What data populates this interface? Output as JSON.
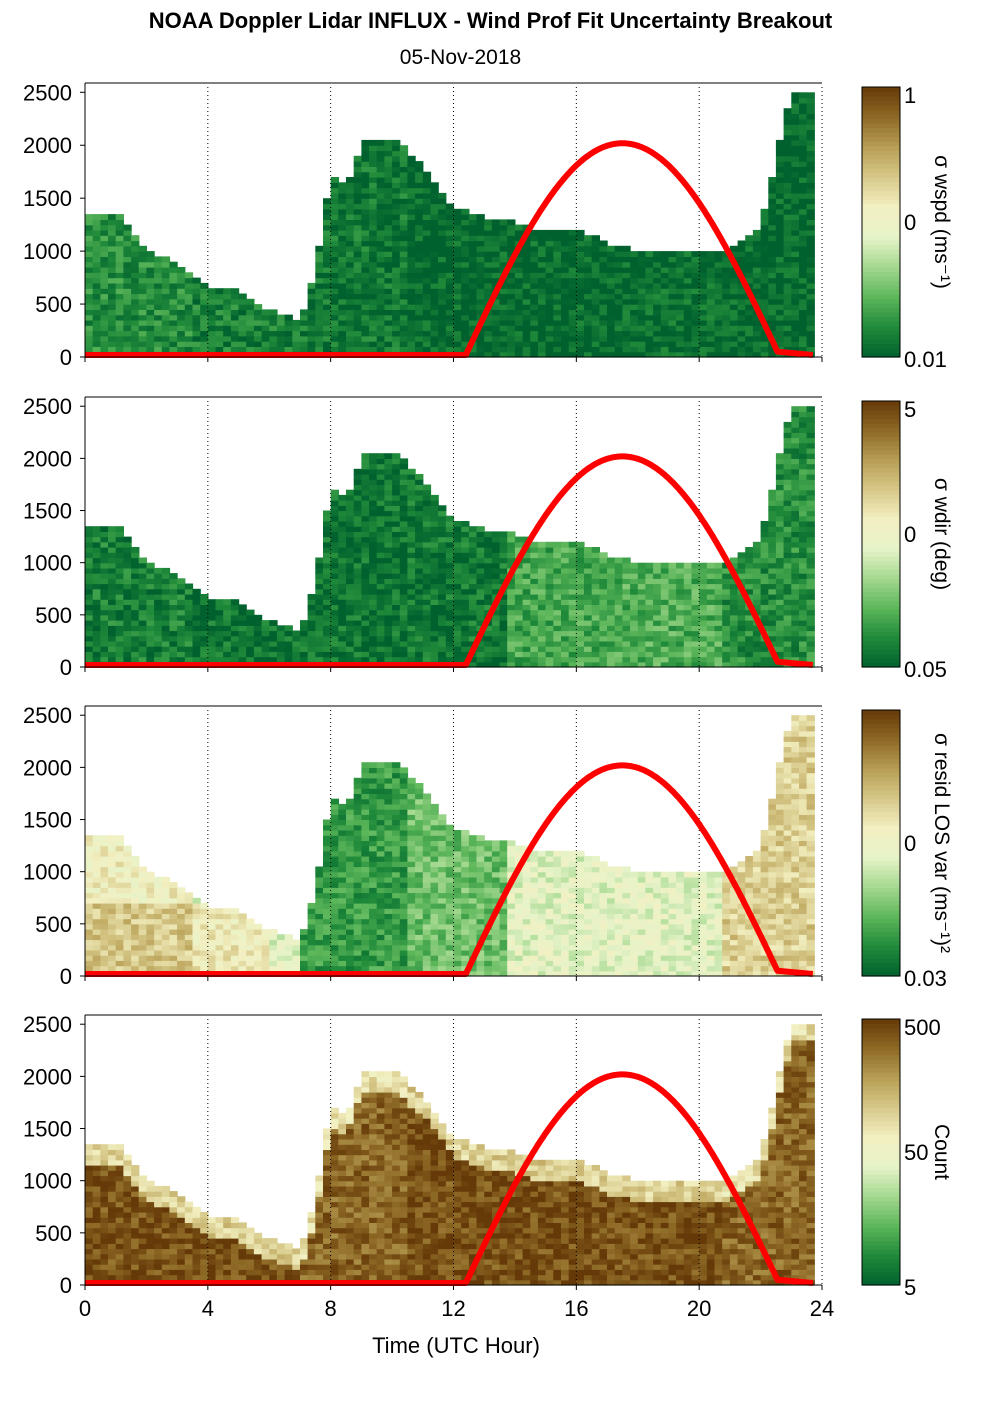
{
  "figure": {
    "title": "NOAA Doppler Lidar INFLUX - Wind Prof Fit Uncertainty Breakout",
    "subtitle": "05-Nov-2018",
    "xlabel": "Time (UTC Hour)"
  },
  "colors": {
    "colormap": [
      "#00612e",
      "#1f8a3a",
      "#5cb65a",
      "#a3d88f",
      "#e6f3c8",
      "#f3f0c2",
      "#d7c98a",
      "#b89f55",
      "#8e6a26",
      "#663a08"
    ],
    "sun_curve": "#ff0000",
    "gridline": "#000000"
  },
  "chart_data": [
    {
      "type": "heatmap",
      "panel": "wind speed uncertainty",
      "colorbar_label": "σ wspd (ms⁻¹)",
      "colorbar_ticks": [
        "1",
        "0",
        "0.01"
      ],
      "colorbar_scale": "log",
      "x": {
        "range": [
          0,
          24
        ],
        "ticks": [
          0,
          4,
          8,
          12,
          16,
          20,
          24
        ],
        "grid": "dotted"
      },
      "y": {
        "range": [
          0,
          2550
        ],
        "ticks": [
          0,
          500,
          1000,
          1500,
          2000,
          2500
        ]
      },
      "coverage_top_m": [
        [
          0,
          1300
        ],
        [
          1,
          1350
        ],
        [
          2,
          1000
        ],
        [
          3,
          850
        ],
        [
          4,
          650
        ],
        [
          5,
          600
        ],
        [
          6,
          420
        ],
        [
          7,
          330
        ],
        [
          7.5,
          800
        ],
        [
          8,
          1700
        ],
        [
          8.5,
          1600
        ],
        [
          9,
          2000
        ],
        [
          10,
          2050
        ],
        [
          11,
          1800
        ],
        [
          12,
          1400
        ],
        [
          13,
          1300
        ],
        [
          14,
          1250
        ],
        [
          15,
          1150
        ],
        [
          16,
          1200
        ],
        [
          17,
          1050
        ],
        [
          18,
          980
        ],
        [
          19,
          950
        ],
        [
          20,
          980
        ],
        [
          21,
          1000
        ],
        [
          22,
          1200
        ],
        [
          23,
          2500
        ],
        [
          24,
          2500
        ]
      ],
      "level_by_segment": [
        0.12,
        0.08,
        0.06,
        0.02,
        0.02,
        0.03,
        0.02
      ],
      "sun_elevation": {
        "x": [
          0,
          12.4,
          17.5,
          22.6,
          24
        ],
        "peak": 2000,
        "note": "solar curve"
      }
    },
    {
      "type": "heatmap",
      "panel": "wind direction uncertainty",
      "colorbar_label": "σ wdir (deg)",
      "colorbar_ticks": [
        "5",
        "0",
        "0.05"
      ],
      "colorbar_scale": "log",
      "x": {
        "range": [
          0,
          24
        ],
        "ticks": [
          0,
          4,
          8,
          12,
          16,
          20,
          24
        ],
        "grid": "dotted"
      },
      "y": {
        "range": [
          0,
          2550
        ],
        "ticks": [
          0,
          500,
          1000,
          1500,
          2000,
          2500
        ]
      },
      "coverage_top_m": [
        [
          0,
          1300
        ],
        [
          1,
          1350
        ],
        [
          2,
          1000
        ],
        [
          3,
          850
        ],
        [
          4,
          650
        ],
        [
          5,
          600
        ],
        [
          6,
          420
        ],
        [
          7,
          330
        ],
        [
          7.5,
          800
        ],
        [
          8,
          1700
        ],
        [
          8.5,
          1600
        ],
        [
          9,
          2000
        ],
        [
          10,
          2050
        ],
        [
          11,
          1800
        ],
        [
          12,
          1400
        ],
        [
          13,
          1300
        ],
        [
          14,
          1250
        ],
        [
          15,
          1150
        ],
        [
          16,
          1200
        ],
        [
          17,
          1050
        ],
        [
          18,
          980
        ],
        [
          19,
          950
        ],
        [
          20,
          980
        ],
        [
          21,
          1000
        ],
        [
          22,
          1200
        ],
        [
          23,
          2500
        ],
        [
          24,
          2500
        ]
      ],
      "level_by_segment": [
        0.08,
        0.05,
        0.05,
        0.06,
        0.18,
        0.2,
        0.12
      ],
      "sun_elevation": {
        "x": [
          0,
          12.4,
          17.5,
          22.6,
          24
        ],
        "peak": 2000,
        "note": "solar curve"
      }
    },
    {
      "type": "heatmap",
      "panel": "residual LOS variance",
      "colorbar_label": "σ resid LOS var (ms⁻¹)²",
      "colorbar_ticks": [
        "",
        "0",
        "0.03"
      ],
      "colorbar_scale": "log",
      "x": {
        "range": [
          0,
          24
        ],
        "ticks": [
          0,
          4,
          8,
          12,
          16,
          20,
          24
        ],
        "grid": "dotted"
      },
      "y": {
        "range": [
          0,
          2550
        ],
        "ticks": [
          0,
          500,
          1000,
          1500,
          2000,
          2500
        ]
      },
      "coverage_top_m": [
        [
          0,
          1300
        ],
        [
          1,
          1350
        ],
        [
          2,
          1000
        ],
        [
          3,
          850
        ],
        [
          4,
          650
        ],
        [
          5,
          600
        ],
        [
          6,
          420
        ],
        [
          7,
          330
        ],
        [
          7.5,
          800
        ],
        [
          8,
          1700
        ],
        [
          8.5,
          1600
        ],
        [
          9,
          2000
        ],
        [
          10,
          2050
        ],
        [
          11,
          1800
        ],
        [
          12,
          1400
        ],
        [
          13,
          1300
        ],
        [
          14,
          1250
        ],
        [
          15,
          1150
        ],
        [
          16,
          1200
        ],
        [
          17,
          1050
        ],
        [
          18,
          980
        ],
        [
          19,
          950
        ],
        [
          20,
          980
        ],
        [
          21,
          1000
        ],
        [
          22,
          1200
        ],
        [
          23,
          2500
        ],
        [
          24,
          2500
        ]
      ],
      "level_by_segment": [
        0.55,
        0.45,
        0.15,
        0.25,
        0.45,
        0.45,
        0.65
      ],
      "sun_elevation": {
        "x": [
          0,
          12.4,
          17.5,
          22.6,
          24
        ],
        "peak": 2000,
        "note": "solar curve"
      }
    },
    {
      "type": "heatmap",
      "panel": "count",
      "colorbar_label": "Count",
      "colorbar_ticks": [
        "500",
        "50",
        "5"
      ],
      "colorbar_scale": "log",
      "x": {
        "range": [
          0,
          24
        ],
        "ticks": [
          0,
          4,
          8,
          12,
          16,
          20,
          24
        ],
        "labels": [
          "0",
          "4",
          "8",
          "12",
          "16",
          "20",
          "24"
        ],
        "grid": "dotted"
      },
      "y": {
        "range": [
          0,
          2550
        ],
        "ticks": [
          0,
          500,
          1000,
          1500,
          2000,
          2500
        ]
      },
      "coverage_top_m": [
        [
          0,
          1300
        ],
        [
          1,
          1350
        ],
        [
          2,
          1000
        ],
        [
          3,
          850
        ],
        [
          4,
          650
        ],
        [
          5,
          600
        ],
        [
          6,
          420
        ],
        [
          7,
          330
        ],
        [
          7.5,
          800
        ],
        [
          8,
          1700
        ],
        [
          8.5,
          1600
        ],
        [
          9,
          2000
        ],
        [
          10,
          2050
        ],
        [
          11,
          1800
        ],
        [
          12,
          1400
        ],
        [
          13,
          1300
        ],
        [
          14,
          1250
        ],
        [
          15,
          1150
        ],
        [
          16,
          1200
        ],
        [
          17,
          1050
        ],
        [
          18,
          980
        ],
        [
          19,
          950
        ],
        [
          20,
          980
        ],
        [
          21,
          1000
        ],
        [
          22,
          1200
        ],
        [
          23,
          2500
        ],
        [
          24,
          2500
        ]
      ],
      "level_by_segment": [
        0.95,
        0.95,
        0.9,
        0.95,
        0.95,
        0.95,
        0.9
      ],
      "sun_elevation": {
        "x": [
          0,
          12.4,
          17.5,
          22.6,
          24
        ],
        "peak": 2000,
        "note": "solar curve"
      }
    }
  ]
}
